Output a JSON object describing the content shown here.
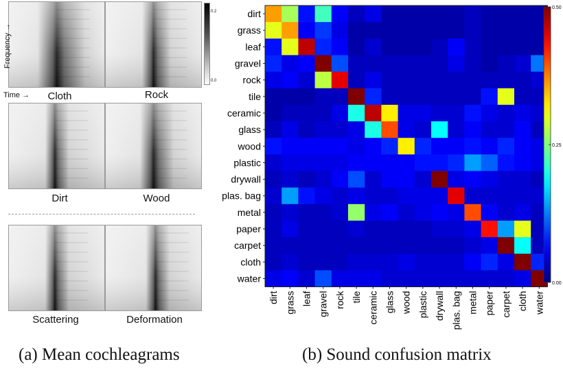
{
  "left_panel": {
    "axis_y_label": "Frequency",
    "axis_x_label": "Time",
    "axis_arrow": "→",
    "colorbar_ticks": [
      "0.2",
      "0.0"
    ],
    "panels": [
      {
        "label": "Cloth"
      },
      {
        "label": "Rock"
      },
      {
        "label": "Dirt"
      },
      {
        "label": "Wood"
      },
      {
        "label": "Scattering"
      },
      {
        "label": "Deformation"
      }
    ],
    "caption": "(a) Mean cochleagrams"
  },
  "right_panel": {
    "caption": "(b) Sound confusion matrix"
  },
  "chart_data": {
    "type": "heatmap",
    "title": "",
    "rows": [
      "dirt",
      "grass",
      "leaf",
      "gravel",
      "rock",
      "tile",
      "ceramic",
      "glass",
      "wood",
      "plastic",
      "drywall",
      "plas. bag",
      "metal",
      "paper",
      "carpet",
      "cloth",
      "water"
    ],
    "cols": [
      "dirt",
      "grass",
      "leaf",
      "gravel",
      "rock",
      "tile",
      "ceramic",
      "glass",
      "wood",
      "plastic",
      "drywall",
      "plas. bag",
      "metal",
      "paper",
      "carpet",
      "cloth",
      "water"
    ],
    "values": [
      [
        0.36,
        0.27,
        0.07,
        0.22,
        0.06,
        0.03,
        0.05,
        0.02,
        0.02,
        0.02,
        0.02,
        0.02,
        0.03,
        0.02,
        0.02,
        0.02,
        0.02
      ],
      [
        0.3,
        0.36,
        0.06,
        0.09,
        0.05,
        0.02,
        0.02,
        0.02,
        0.02,
        0.02,
        0.02,
        0.02,
        0.03,
        0.02,
        0.02,
        0.02,
        0.02
      ],
      [
        0.07,
        0.3,
        0.47,
        0.08,
        0.06,
        0.02,
        0.04,
        0.02,
        0.02,
        0.02,
        0.03,
        0.06,
        0.03,
        0.02,
        0.02,
        0.02,
        0.02
      ],
      [
        0.08,
        0.05,
        0.06,
        0.52,
        0.1,
        0.03,
        0.03,
        0.03,
        0.03,
        0.03,
        0.03,
        0.05,
        0.03,
        0.02,
        0.03,
        0.04,
        0.12
      ],
      [
        0.05,
        0.06,
        0.04,
        0.28,
        0.45,
        0.03,
        0.05,
        0.03,
        0.03,
        0.03,
        0.03,
        0.03,
        0.03,
        0.03,
        0.03,
        0.03,
        0.04
      ],
      [
        0.02,
        0.02,
        0.02,
        0.03,
        0.03,
        0.53,
        0.08,
        0.03,
        0.03,
        0.03,
        0.03,
        0.03,
        0.03,
        0.07,
        0.3,
        0.03,
        0.03
      ],
      [
        0.02,
        0.03,
        0.03,
        0.03,
        0.05,
        0.2,
        0.47,
        0.32,
        0.05,
        0.05,
        0.04,
        0.04,
        0.07,
        0.05,
        0.04,
        0.05,
        0.04
      ],
      [
        0.03,
        0.05,
        0.03,
        0.04,
        0.04,
        0.05,
        0.2,
        0.4,
        0.05,
        0.04,
        0.19,
        0.04,
        0.06,
        0.04,
        0.04,
        0.06,
        0.03
      ],
      [
        0.07,
        0.06,
        0.06,
        0.06,
        0.06,
        0.05,
        0.06,
        0.08,
        0.32,
        0.08,
        0.06,
        0.06,
        0.07,
        0.06,
        0.08,
        0.06,
        0.05
      ],
      [
        0.04,
        0.05,
        0.05,
        0.05,
        0.05,
        0.06,
        0.06,
        0.06,
        0.06,
        0.07,
        0.07,
        0.08,
        0.14,
        0.11,
        0.07,
        0.06,
        0.05
      ],
      [
        0.03,
        0.04,
        0.03,
        0.04,
        0.06,
        0.1,
        0.04,
        0.06,
        0.06,
        0.04,
        0.52,
        0.05,
        0.06,
        0.05,
        0.04,
        0.04,
        0.03
      ],
      [
        0.04,
        0.14,
        0.07,
        0.05,
        0.04,
        0.05,
        0.04,
        0.04,
        0.05,
        0.05,
        0.05,
        0.45,
        0.04,
        0.04,
        0.04,
        0.04,
        0.04
      ],
      [
        0.03,
        0.04,
        0.03,
        0.03,
        0.04,
        0.26,
        0.05,
        0.06,
        0.04,
        0.05,
        0.06,
        0.05,
        0.4,
        0.06,
        0.04,
        0.05,
        0.03
      ],
      [
        0.03,
        0.05,
        0.03,
        0.03,
        0.03,
        0.04,
        0.03,
        0.03,
        0.03,
        0.03,
        0.04,
        0.04,
        0.05,
        0.43,
        0.14,
        0.3,
        0.03
      ],
      [
        0.03,
        0.03,
        0.03,
        0.03,
        0.03,
        0.03,
        0.03,
        0.03,
        0.03,
        0.03,
        0.03,
        0.03,
        0.04,
        0.05,
        0.52,
        0.19,
        0.03
      ],
      [
        0.03,
        0.04,
        0.03,
        0.03,
        0.03,
        0.04,
        0.04,
        0.04,
        0.05,
        0.04,
        0.04,
        0.04,
        0.06,
        0.08,
        0.05,
        0.52,
        0.08
      ],
      [
        0.05,
        0.06,
        0.04,
        0.1,
        0.05,
        0.05,
        0.05,
        0.04,
        0.04,
        0.04,
        0.04,
        0.04,
        0.04,
        0.04,
        0.04,
        0.05,
        0.55
      ]
    ],
    "vmin": 0.0,
    "vmax": 0.5,
    "colormap": "jet",
    "colorbar_ticks": [
      "0.50",
      "0.25",
      "0.00"
    ],
    "colorbar_tick_values": [
      0.5,
      0.25,
      0.0
    ]
  }
}
